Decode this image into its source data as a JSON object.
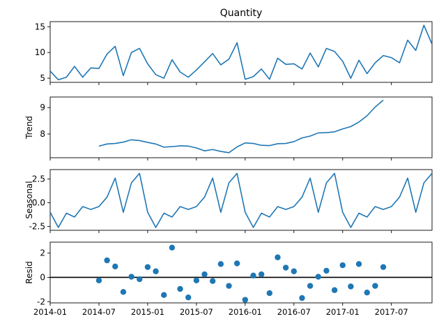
{
  "chart_data": [
    {
      "type": "line",
      "title": "Quantity",
      "ylabel": "",
      "xlabel": "",
      "ylim": [
        4.2,
        16.0
      ],
      "yticks": [
        5,
        10,
        15
      ],
      "color": "#1f77b4",
      "values": [
        6.4,
        4.7,
        5.2,
        7.3,
        5.2,
        7.0,
        6.9,
        9.7,
        11.2,
        5.5,
        10.0,
        10.8,
        7.8,
        5.7,
        5.0,
        8.6,
        6.2,
        5.2,
        6.6,
        8.2,
        9.8,
        7.6,
        8.7,
        11.9,
        4.8,
        5.3,
        6.8,
        4.8,
        8.9,
        7.7,
        7.8,
        6.8,
        9.9,
        7.2,
        10.8,
        10.2,
        8.3,
        5.0,
        8.5,
        5.9,
        8.0,
        9.4,
        9.0,
        8.0,
        12.4,
        10.4,
        15.3,
        11.6
      ]
    },
    {
      "type": "line",
      "title": "",
      "ylabel": "Trend",
      "xlabel": "",
      "ylim": [
        7.1,
        9.4
      ],
      "yticks": [
        8,
        9
      ],
      "color": "#1f77b4",
      "values": [
        null,
        null,
        null,
        null,
        null,
        null,
        7.54,
        7.62,
        7.64,
        7.69,
        7.78,
        7.75,
        7.68,
        7.62,
        7.5,
        7.52,
        7.55,
        7.54,
        7.47,
        7.36,
        7.41,
        7.34,
        7.29,
        7.51,
        7.66,
        7.64,
        7.57,
        7.56,
        7.63,
        7.64,
        7.71,
        7.85,
        7.92,
        8.04,
        8.05,
        8.08,
        8.19,
        8.28,
        8.45,
        8.69,
        9.02,
        9.28,
        null,
        null,
        null,
        null,
        null,
        null
      ]
    },
    {
      "type": "line",
      "title": "",
      "ylabel": "Seasonal",
      "xlabel": "",
      "ylim": [
        -2.9,
        3.5
      ],
      "yticks": [
        -2.5,
        0.0,
        2.5
      ],
      "color": "#1f77b4",
      "values": [
        -1.0,
        -2.6,
        -1.1,
        -1.5,
        -0.4,
        -0.7,
        -0.4,
        0.6,
        2.6,
        -1.0,
        2.1,
        3.1,
        -1.0,
        -2.6,
        -1.1,
        -1.5,
        -0.4,
        -0.7,
        -0.4,
        0.6,
        2.6,
        -1.0,
        2.1,
        3.1,
        -1.0,
        -2.6,
        -1.1,
        -1.5,
        -0.4,
        -0.7,
        -0.4,
        0.6,
        2.6,
        -1.0,
        2.1,
        3.1,
        -1.0,
        -2.6,
        -1.1,
        -1.5,
        -0.4,
        -0.7,
        -0.4,
        0.6,
        2.6,
        -1.0,
        2.1,
        3.1
      ]
    },
    {
      "type": "scatter",
      "title": "",
      "ylabel": "Resid",
      "xlabel": "",
      "ylim": [
        -2.1,
        2.9
      ],
      "yticks": [
        -2,
        0,
        2
      ],
      "hline": 0,
      "color": "#1f77b4",
      "values": [
        null,
        null,
        null,
        null,
        null,
        null,
        -0.25,
        1.4,
        0.9,
        -1.2,
        0.05,
        -0.15,
        0.85,
        0.5,
        -1.45,
        2.45,
        -0.95,
        -1.65,
        -0.25,
        0.25,
        -0.3,
        1.1,
        -0.7,
        1.15,
        -1.85,
        0.15,
        0.25,
        -1.3,
        1.65,
        0.8,
        0.5,
        -1.7,
        -0.7,
        0.05,
        0.55,
        -1.05,
        1.0,
        -0.75,
        1.1,
        -1.25,
        -0.7,
        0.85,
        null,
        null,
        null,
        null,
        null,
        null
      ]
    }
  ],
  "x_axis": {
    "start": "2014-01",
    "periods": 48,
    "ticks": [
      {
        "label": "2014-01",
        "index": 0
      },
      {
        "label": "2014-07",
        "index": 6
      },
      {
        "label": "2015-01",
        "index": 12
      },
      {
        "label": "2015-07",
        "index": 18
      },
      {
        "label": "2016-01",
        "index": 24
      },
      {
        "label": "2016-07",
        "index": 30
      },
      {
        "label": "2017-01",
        "index": 36
      },
      {
        "label": "2017-07",
        "index": 42
      }
    ]
  }
}
